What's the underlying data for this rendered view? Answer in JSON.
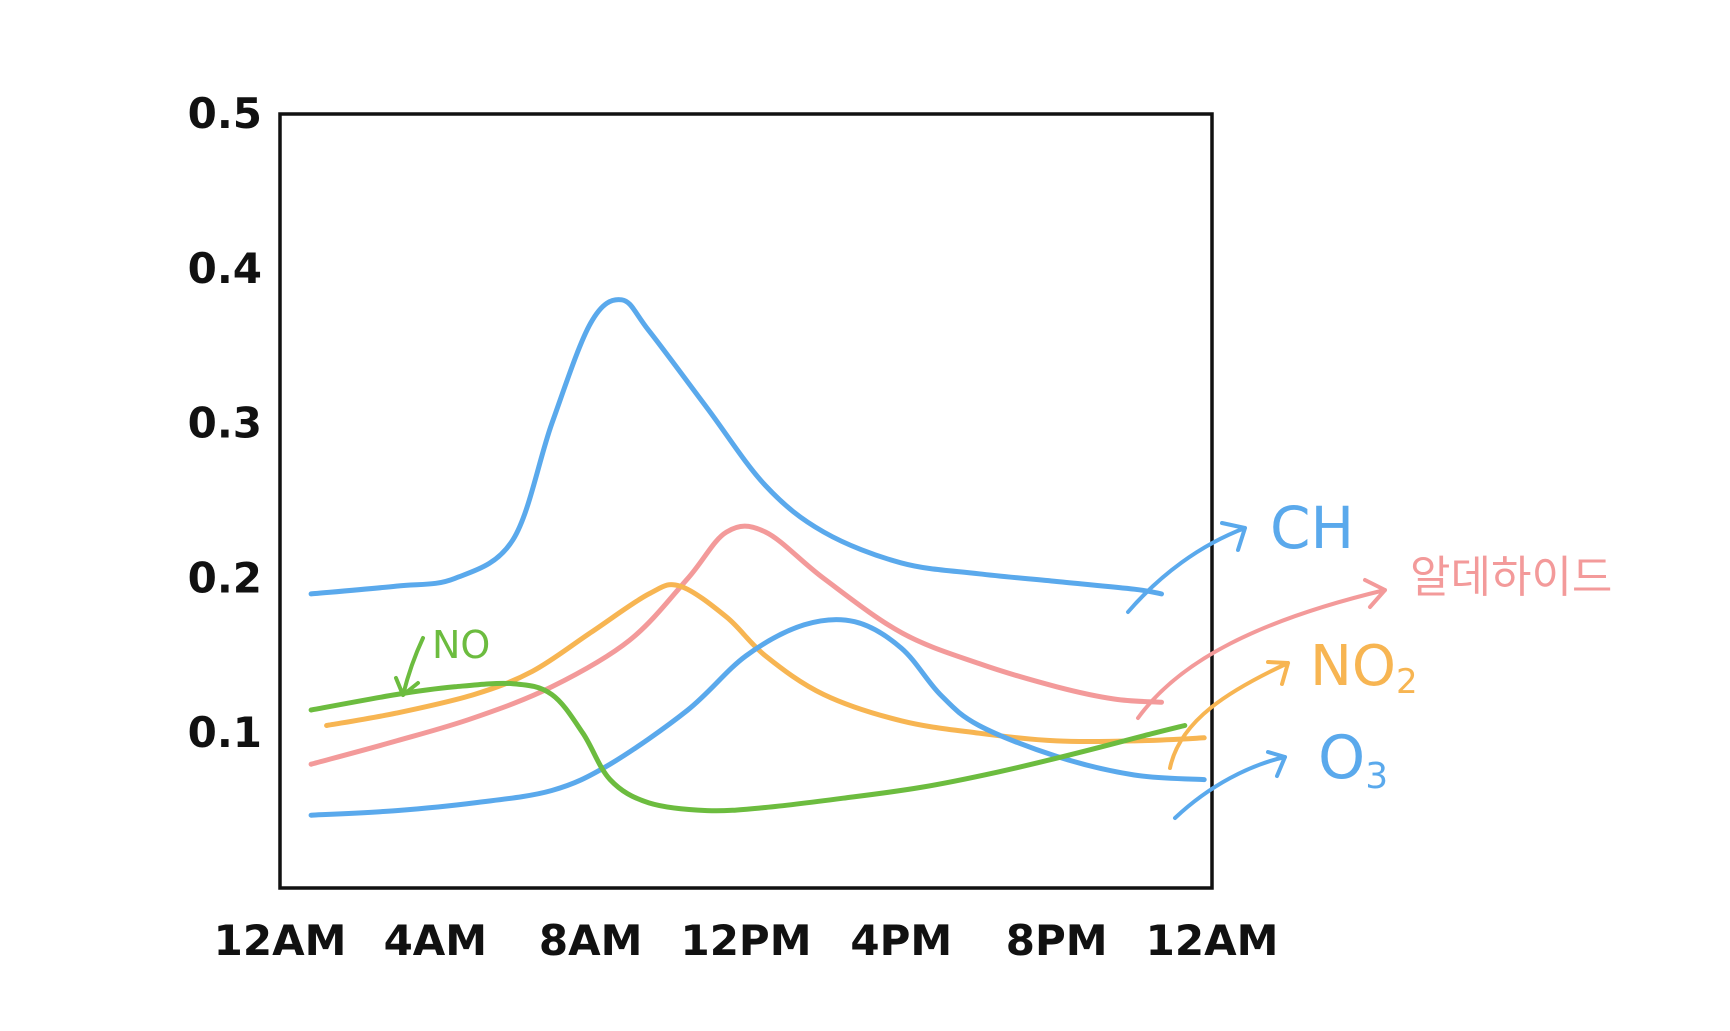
{
  "chart_data": {
    "type": "line",
    "title": "",
    "xlabel": "",
    "ylabel": "",
    "ylim": [
      0,
      0.5
    ],
    "xlim": [
      0,
      24
    ],
    "x_tick_labels": [
      "12AM",
      "4AM",
      "8AM",
      "12PM",
      "4PM",
      "8PM",
      "12AM"
    ],
    "x_tick_hours": [
      0,
      4,
      8,
      12,
      16,
      20,
      24
    ],
    "y_tick_labels": [
      "0.1",
      "0.2",
      "0.3",
      "0.4",
      "0.5"
    ],
    "y_tick_values": [
      0.1,
      0.2,
      0.3,
      0.4,
      0.5
    ],
    "grid": false,
    "series": [
      {
        "name": "CH",
        "color": "#5aa9ec",
        "points": [
          [
            0.8,
            0.19
          ],
          [
            3,
            0.195
          ],
          [
            4.5,
            0.2
          ],
          [
            6,
            0.225
          ],
          [
            7,
            0.3
          ],
          [
            8,
            0.365
          ],
          [
            8.8,
            0.38
          ],
          [
            9.5,
            0.36
          ],
          [
            11,
            0.31
          ],
          [
            12.5,
            0.26
          ],
          [
            14,
            0.23
          ],
          [
            16,
            0.21
          ],
          [
            18,
            0.203
          ],
          [
            20,
            0.198
          ],
          [
            22,
            0.193
          ],
          [
            22.7,
            0.19
          ]
        ]
      },
      {
        "name": "알데하이드",
        "color": "#f39a9a",
        "points": [
          [
            0.8,
            0.08
          ],
          [
            3,
            0.095
          ],
          [
            5,
            0.11
          ],
          [
            7,
            0.13
          ],
          [
            9,
            0.16
          ],
          [
            10.5,
            0.2
          ],
          [
            11.5,
            0.23
          ],
          [
            12.5,
            0.23
          ],
          [
            14,
            0.2
          ],
          [
            16,
            0.165
          ],
          [
            18,
            0.145
          ],
          [
            20,
            0.13
          ],
          [
            21.5,
            0.122
          ],
          [
            22.7,
            0.12
          ]
        ]
      },
      {
        "name": "NO2",
        "color": "#f7b552",
        "points": [
          [
            1.2,
            0.105
          ],
          [
            3,
            0.113
          ],
          [
            5,
            0.125
          ],
          [
            6.5,
            0.14
          ],
          [
            8,
            0.165
          ],
          [
            9.5,
            0.19
          ],
          [
            10.3,
            0.195
          ],
          [
            11.5,
            0.175
          ],
          [
            12.5,
            0.15
          ],
          [
            14,
            0.125
          ],
          [
            16,
            0.108
          ],
          [
            18,
            0.1
          ],
          [
            20,
            0.095
          ],
          [
            22,
            0.095
          ],
          [
            23.8,
            0.097
          ]
        ]
      },
      {
        "name": "O3",
        "color": "#5aa9ec",
        "points": [
          [
            0.8,
            0.047
          ],
          [
            3,
            0.05
          ],
          [
            5,
            0.055
          ],
          [
            7,
            0.063
          ],
          [
            8.5,
            0.08
          ],
          [
            10.5,
            0.115
          ],
          [
            12,
            0.15
          ],
          [
            13.5,
            0.17
          ],
          [
            14.8,
            0.172
          ],
          [
            16,
            0.155
          ],
          [
            17,
            0.125
          ],
          [
            18,
            0.105
          ],
          [
            20,
            0.085
          ],
          [
            22,
            0.073
          ],
          [
            23.8,
            0.07
          ]
        ]
      },
      {
        "name": "NO",
        "color": "#6cbc3f",
        "points": [
          [
            0.8,
            0.115
          ],
          [
            3,
            0.125
          ],
          [
            4.5,
            0.13
          ],
          [
            6,
            0.132
          ],
          [
            7,
            0.125
          ],
          [
            7.8,
            0.1
          ],
          [
            8.5,
            0.07
          ],
          [
            9.5,
            0.055
          ],
          [
            11,
            0.05
          ],
          [
            12.5,
            0.052
          ],
          [
            14.5,
            0.058
          ],
          [
            16.5,
            0.065
          ],
          [
            18.5,
            0.075
          ],
          [
            20.5,
            0.087
          ],
          [
            22.5,
            0.1
          ],
          [
            23.3,
            0.105
          ]
        ]
      }
    ]
  },
  "labels": {
    "ch": "CH",
    "aldehyde": "알데하이드",
    "no2_main": "NO",
    "no2_sub": "2",
    "o3_main": "O",
    "o3_sub": "3",
    "no": "NO"
  }
}
